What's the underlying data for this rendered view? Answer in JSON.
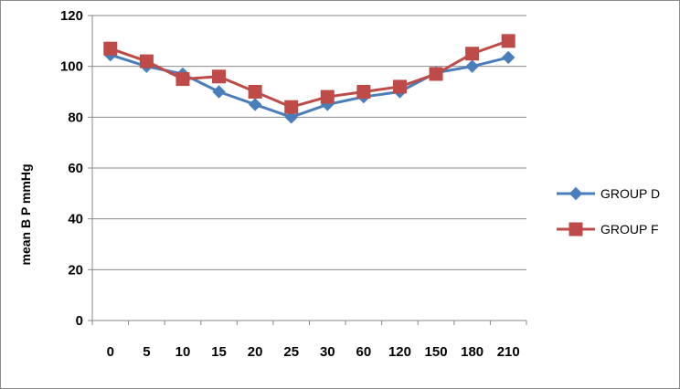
{
  "chart_data": {
    "type": "line",
    "categories": [
      "0",
      "5",
      "10",
      "15",
      "20",
      "25",
      "30",
      "60",
      "120",
      "150",
      "180",
      "210"
    ],
    "series": [
      {
        "name": "GROUP D",
        "color": "#4a7ebb",
        "marker": "diamond",
        "values": [
          104.5,
          100,
          97,
          90,
          85,
          80,
          85,
          88,
          90,
          97.5,
          100,
          103.5
        ]
      },
      {
        "name": "GROUP F",
        "color": "#be4b48",
        "marker": "square",
        "values": [
          107,
          102,
          95,
          96,
          90,
          84,
          88,
          90,
          92,
          97,
          105,
          110
        ]
      }
    ],
    "title": "",
    "xlabel": "",
    "ylabel": "mean B P mmHg",
    "ylim": [
      0,
      120
    ],
    "yticks": [
      "0",
      "20",
      "40",
      "60",
      "80",
      "100",
      "120"
    ],
    "grid": true,
    "legend_position": "right"
  }
}
